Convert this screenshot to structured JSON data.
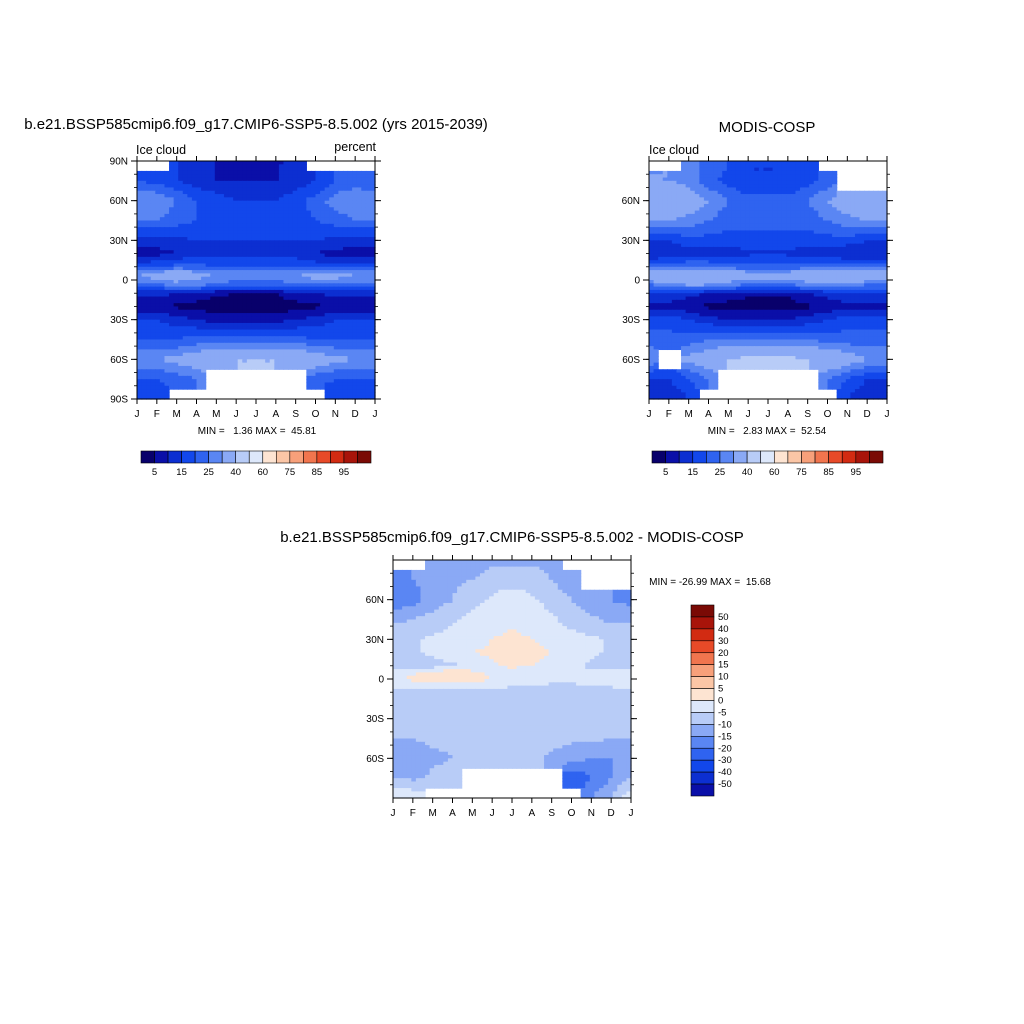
{
  "page": {
    "title_left": "b.e21.BSSP585cmip6.f09_g17.CMIP6-SSP5-8.5.002 (yrs 2015-2039)",
    "title_right": "MODIS-COSP",
    "title_diff": "b.e21.BSSP585cmip6.f09_g17.CMIP6-SSP5-8.5.002 - MODIS-COSP",
    "left_label": "Ice cloud",
    "right_label": "Ice cloud",
    "units_label": "percent"
  },
  "colors": {
    "abs_scale": [
      "#08006b",
      "#0a0fa8",
      "#0c2fd1",
      "#1247eb",
      "#2f63f0",
      "#5a86f3",
      "#8aa9f5",
      "#b8ccf7",
      "#dde8fb",
      "#fde4d2",
      "#fbc6a6",
      "#f7a07a",
      "#f1754e",
      "#e84a28",
      "#d22b12",
      "#a8140a",
      "#7a0a05"
    ],
    "diff_scale": [
      "#08006b",
      "#0a0fa8",
      "#0c2fd1",
      "#1247eb",
      "#2f63f0",
      "#5a86f3",
      "#8aa9f5",
      "#b8ccf7",
      "#dde8fb",
      "#fde4d2",
      "#fbc6a6",
      "#f7a07a",
      "#f1754e",
      "#e84a28",
      "#d22b12",
      "#a8140a",
      "#7a0a05"
    ]
  },
  "chart_data": [
    {
      "type": "heatmap",
      "title": "b.e21.BSSP585cmip6.f09_g17.CMIP6-SSP5-8.5.002 (yrs 2015-2039)",
      "left_label": "Ice cloud",
      "right_label": "percent",
      "x_ticks": [
        "J",
        "F",
        "M",
        "A",
        "M",
        "J",
        "J",
        "A",
        "S",
        "O",
        "N",
        "D",
        "J"
      ],
      "y_ticks": [
        "90N",
        "60N",
        "30N",
        "0",
        "30S",
        "60S",
        "90S"
      ],
      "ylim": [
        -90,
        90
      ],
      "min": 1.36,
      "max": 45.81,
      "stats_text": "MIN =   1.36 MAX =  45.81",
      "colorbar_ticks": [
        "5",
        "15",
        "25",
        "40",
        "60",
        "75",
        "85",
        "95"
      ],
      "latitudes": [
        90,
        75,
        60,
        45,
        30,
        20,
        10,
        5,
        0,
        -5,
        -10,
        -20,
        -30,
        -45,
        -60,
        -75,
        -90
      ],
      "months": [
        "J",
        "F",
        "M",
        "A",
        "M",
        "J",
        "J",
        "A",
        "S",
        "O",
        "N",
        "D",
        "J"
      ],
      "values": [
        [
          null,
          null,
          15,
          15,
          10,
          8,
          8,
          8,
          15,
          null,
          null,
          null,
          null
        ],
        [
          20,
          18,
          15,
          12,
          10,
          10,
          10,
          10,
          12,
          15,
          20,
          22,
          20
        ],
        [
          30,
          30,
          25,
          20,
          18,
          15,
          15,
          15,
          18,
          22,
          28,
          30,
          30
        ],
        [
          25,
          25,
          22,
          20,
          18,
          18,
          18,
          18,
          18,
          20,
          22,
          25,
          25
        ],
        [
          12,
          12,
          14,
          15,
          15,
          15,
          15,
          15,
          15,
          15,
          14,
          12,
          12
        ],
        [
          8,
          8,
          10,
          12,
          12,
          14,
          14,
          14,
          12,
          10,
          8,
          8,
          8
        ],
        [
          18,
          20,
          22,
          22,
          20,
          20,
          20,
          20,
          20,
          18,
          18,
          18,
          18
        ],
        [
          30,
          32,
          35,
          32,
          30,
          28,
          28,
          28,
          30,
          32,
          32,
          30,
          30
        ],
        [
          28,
          30,
          32,
          30,
          28,
          25,
          25,
          25,
          28,
          30,
          30,
          28,
          28
        ],
        [
          20,
          22,
          25,
          25,
          22,
          20,
          20,
          20,
          22,
          22,
          22,
          20,
          20
        ],
        [
          12,
          12,
          10,
          8,
          6,
          5,
          5,
          5,
          8,
          10,
          12,
          12,
          12
        ],
        [
          5,
          5,
          4,
          3,
          2,
          2,
          2,
          2,
          3,
          4,
          5,
          5,
          5
        ],
        [
          15,
          15,
          12,
          10,
          8,
          8,
          8,
          8,
          10,
          12,
          15,
          15,
          15
        ],
        [
          20,
          20,
          20,
          22,
          22,
          22,
          22,
          22,
          22,
          20,
          20,
          20,
          20
        ],
        [
          30,
          30,
          32,
          35,
          38,
          40,
          40,
          40,
          38,
          35,
          32,
          30,
          30
        ],
        [
          20,
          20,
          22,
          25,
          null,
          null,
          null,
          null,
          null,
          22,
          20,
          20,
          20
        ],
        [
          15,
          15,
          null,
          null,
          null,
          null,
          null,
          null,
          null,
          null,
          15,
          15,
          15
        ]
      ]
    },
    {
      "type": "heatmap",
      "title": "MODIS-COSP",
      "left_label": "Ice cloud",
      "x_ticks": [
        "J",
        "F",
        "M",
        "A",
        "M",
        "J",
        "J",
        "A",
        "S",
        "O",
        "N",
        "D",
        "J"
      ],
      "y_ticks": [
        "60N",
        "30N",
        "0",
        "30S",
        "60S"
      ],
      "ylim": [
        -90,
        90
      ],
      "min": 2.83,
      "max": 52.54,
      "stats_text": "MIN =   2.83 MAX =  52.54",
      "colorbar_ticks": [
        "5",
        "15",
        "25",
        "40",
        "60",
        "75",
        "85",
        "95"
      ],
      "latitudes": [
        90,
        75,
        60,
        45,
        30,
        20,
        10,
        5,
        0,
        -5,
        -10,
        -20,
        -30,
        -45,
        -60,
        -75,
        -90
      ],
      "months": [
        "J",
        "F",
        "M",
        "A",
        "M",
        "J",
        "J",
        "A",
        "S",
        "O",
        "N",
        "D",
        "J"
      ],
      "values": [
        [
          null,
          null,
          25,
          25,
          20,
          15,
          15,
          15,
          20,
          null,
          null,
          null,
          null
        ],
        [
          30,
          30,
          28,
          22,
          18,
          15,
          15,
          15,
          18,
          22,
          null,
          null,
          null
        ],
        [
          38,
          38,
          35,
          30,
          25,
          22,
          22,
          22,
          25,
          30,
          35,
          38,
          38
        ],
        [
          30,
          30,
          28,
          25,
          22,
          22,
          22,
          22,
          22,
          25,
          28,
          30,
          30
        ],
        [
          15,
          15,
          18,
          18,
          18,
          18,
          18,
          18,
          18,
          18,
          18,
          15,
          15
        ],
        [
          10,
          10,
          12,
          12,
          12,
          14,
          14,
          14,
          12,
          12,
          10,
          10,
          10
        ],
        [
          22,
          25,
          25,
          25,
          22,
          22,
          22,
          22,
          22,
          22,
          22,
          22,
          22
        ],
        [
          35,
          38,
          40,
          38,
          35,
          32,
          32,
          32,
          35,
          38,
          38,
          35,
          35
        ],
        [
          32,
          35,
          38,
          35,
          32,
          30,
          30,
          30,
          32,
          35,
          35,
          32,
          32
        ],
        [
          22,
          25,
          28,
          28,
          25,
          22,
          22,
          22,
          25,
          25,
          25,
          22,
          22
        ],
        [
          15,
          15,
          12,
          10,
          8,
          6,
          6,
          6,
          10,
          12,
          15,
          15,
          15
        ],
        [
          8,
          8,
          6,
          4,
          3,
          3,
          3,
          3,
          4,
          6,
          8,
          8,
          8
        ],
        [
          18,
          18,
          15,
          12,
          10,
          10,
          10,
          10,
          12,
          15,
          18,
          18,
          18
        ],
        [
          22,
          22,
          22,
          25,
          25,
          25,
          25,
          25,
          25,
          22,
          22,
          22,
          22
        ],
        [
          30,
          null,
          32,
          35,
          40,
          42,
          42,
          42,
          40,
          38,
          35,
          30,
          30
        ],
        [
          15,
          15,
          20,
          25,
          null,
          null,
          null,
          null,
          null,
          25,
          20,
          15,
          15
        ],
        [
          10,
          10,
          15,
          null,
          null,
          null,
          null,
          null,
          null,
          null,
          15,
          10,
          10
        ]
      ]
    },
    {
      "type": "heatmap",
      "title": "b.e21.BSSP585cmip6.f09_g17.CMIP6-SSP5-8.5.002 - MODIS-COSP",
      "x_ticks": [
        "J",
        "F",
        "M",
        "A",
        "M",
        "J",
        "J",
        "A",
        "S",
        "O",
        "N",
        "D",
        "J"
      ],
      "y_ticks": [
        "60N",
        "30N",
        "0",
        "30S",
        "60S"
      ],
      "ylim": [
        -90,
        90
      ],
      "min": -26.99,
      "max": 15.68,
      "stats_text": "MIN = -26.99 MAX =  15.68",
      "colorbar_ticks": [
        "50",
        "40",
        "30",
        "20",
        "15",
        "10",
        "5",
        "0",
        "-5",
        "-10",
        "-15",
        "-20",
        "-30",
        "-40",
        "-50"
      ],
      "latitudes": [
        90,
        75,
        60,
        45,
        30,
        20,
        10,
        5,
        0,
        -5,
        -10,
        -20,
        -30,
        -45,
        -60,
        -75,
        -90
      ],
      "months": [
        "J",
        "F",
        "M",
        "A",
        "M",
        "J",
        "J",
        "A",
        "S",
        "O",
        "N",
        "D",
        "J"
      ],
      "values": [
        [
          null,
          null,
          -8,
          -8,
          -8,
          -6,
          -6,
          -6,
          -6,
          null,
          null,
          null,
          null
        ],
        [
          -12,
          -10,
          -8,
          -6,
          -5,
          -3,
          -2,
          -3,
          -5,
          -8,
          null,
          null,
          null
        ],
        [
          -15,
          -12,
          -8,
          -5,
          -2,
          1,
          3,
          1,
          -2,
          -5,
          -8,
          -10,
          -12
        ],
        [
          -6,
          -5,
          -3,
          -1,
          2,
          3,
          4,
          3,
          1,
          -2,
          -4,
          -6,
          -6
        ],
        [
          -2,
          -1,
          1,
          2,
          3,
          5,
          6,
          5,
          3,
          2,
          1,
          -1,
          -2
        ],
        [
          -2,
          -1,
          1,
          3,
          5,
          6,
          8,
          7,
          5,
          3,
          1,
          -1,
          -2
        ],
        [
          -4,
          -3,
          -2,
          -1,
          2,
          4,
          6,
          5,
          3,
          1,
          -1,
          -3,
          -4
        ],
        [
          2,
          4,
          6,
          8,
          6,
          4,
          3,
          3,
          2,
          1,
          1,
          2,
          2
        ],
        [
          4,
          6,
          8,
          10,
          8,
          5,
          3,
          3,
          2,
          2,
          3,
          4,
          4
        ],
        [
          2,
          2,
          3,
          2,
          1,
          1,
          0,
          0,
          -1,
          -1,
          0,
          1,
          2
        ],
        [
          -3,
          -3,
          -2,
          -2,
          -2,
          -1,
          -1,
          -1,
          -2,
          -2,
          -2,
          -3,
          -3
        ],
        [
          -3,
          -3,
          -2,
          -1,
          -1,
          -1,
          -1,
          -1,
          -1,
          -1,
          -2,
          -3,
          -3
        ],
        [
          -3,
          -3,
          -4,
          -4,
          -4,
          -3,
          -3,
          -3,
          -3,
          -4,
          -4,
          -3,
          -3
        ],
        [
          -5,
          -5,
          -4,
          -4,
          -3,
          -3,
          -3,
          -3,
          -3,
          -4,
          -4,
          -5,
          -5
        ],
        [
          -10,
          -8,
          -6,
          -5,
          -5,
          -4,
          -4,
          -4,
          -6,
          -8,
          -10,
          -10,
          -10
        ],
        [
          -5,
          -6,
          -4,
          -3,
          null,
          null,
          null,
          null,
          null,
          -20,
          -15,
          -10,
          -5
        ],
        [
          5,
          4,
          null,
          null,
          null,
          null,
          null,
          null,
          null,
          null,
          -10,
          -5,
          5
        ]
      ]
    }
  ]
}
